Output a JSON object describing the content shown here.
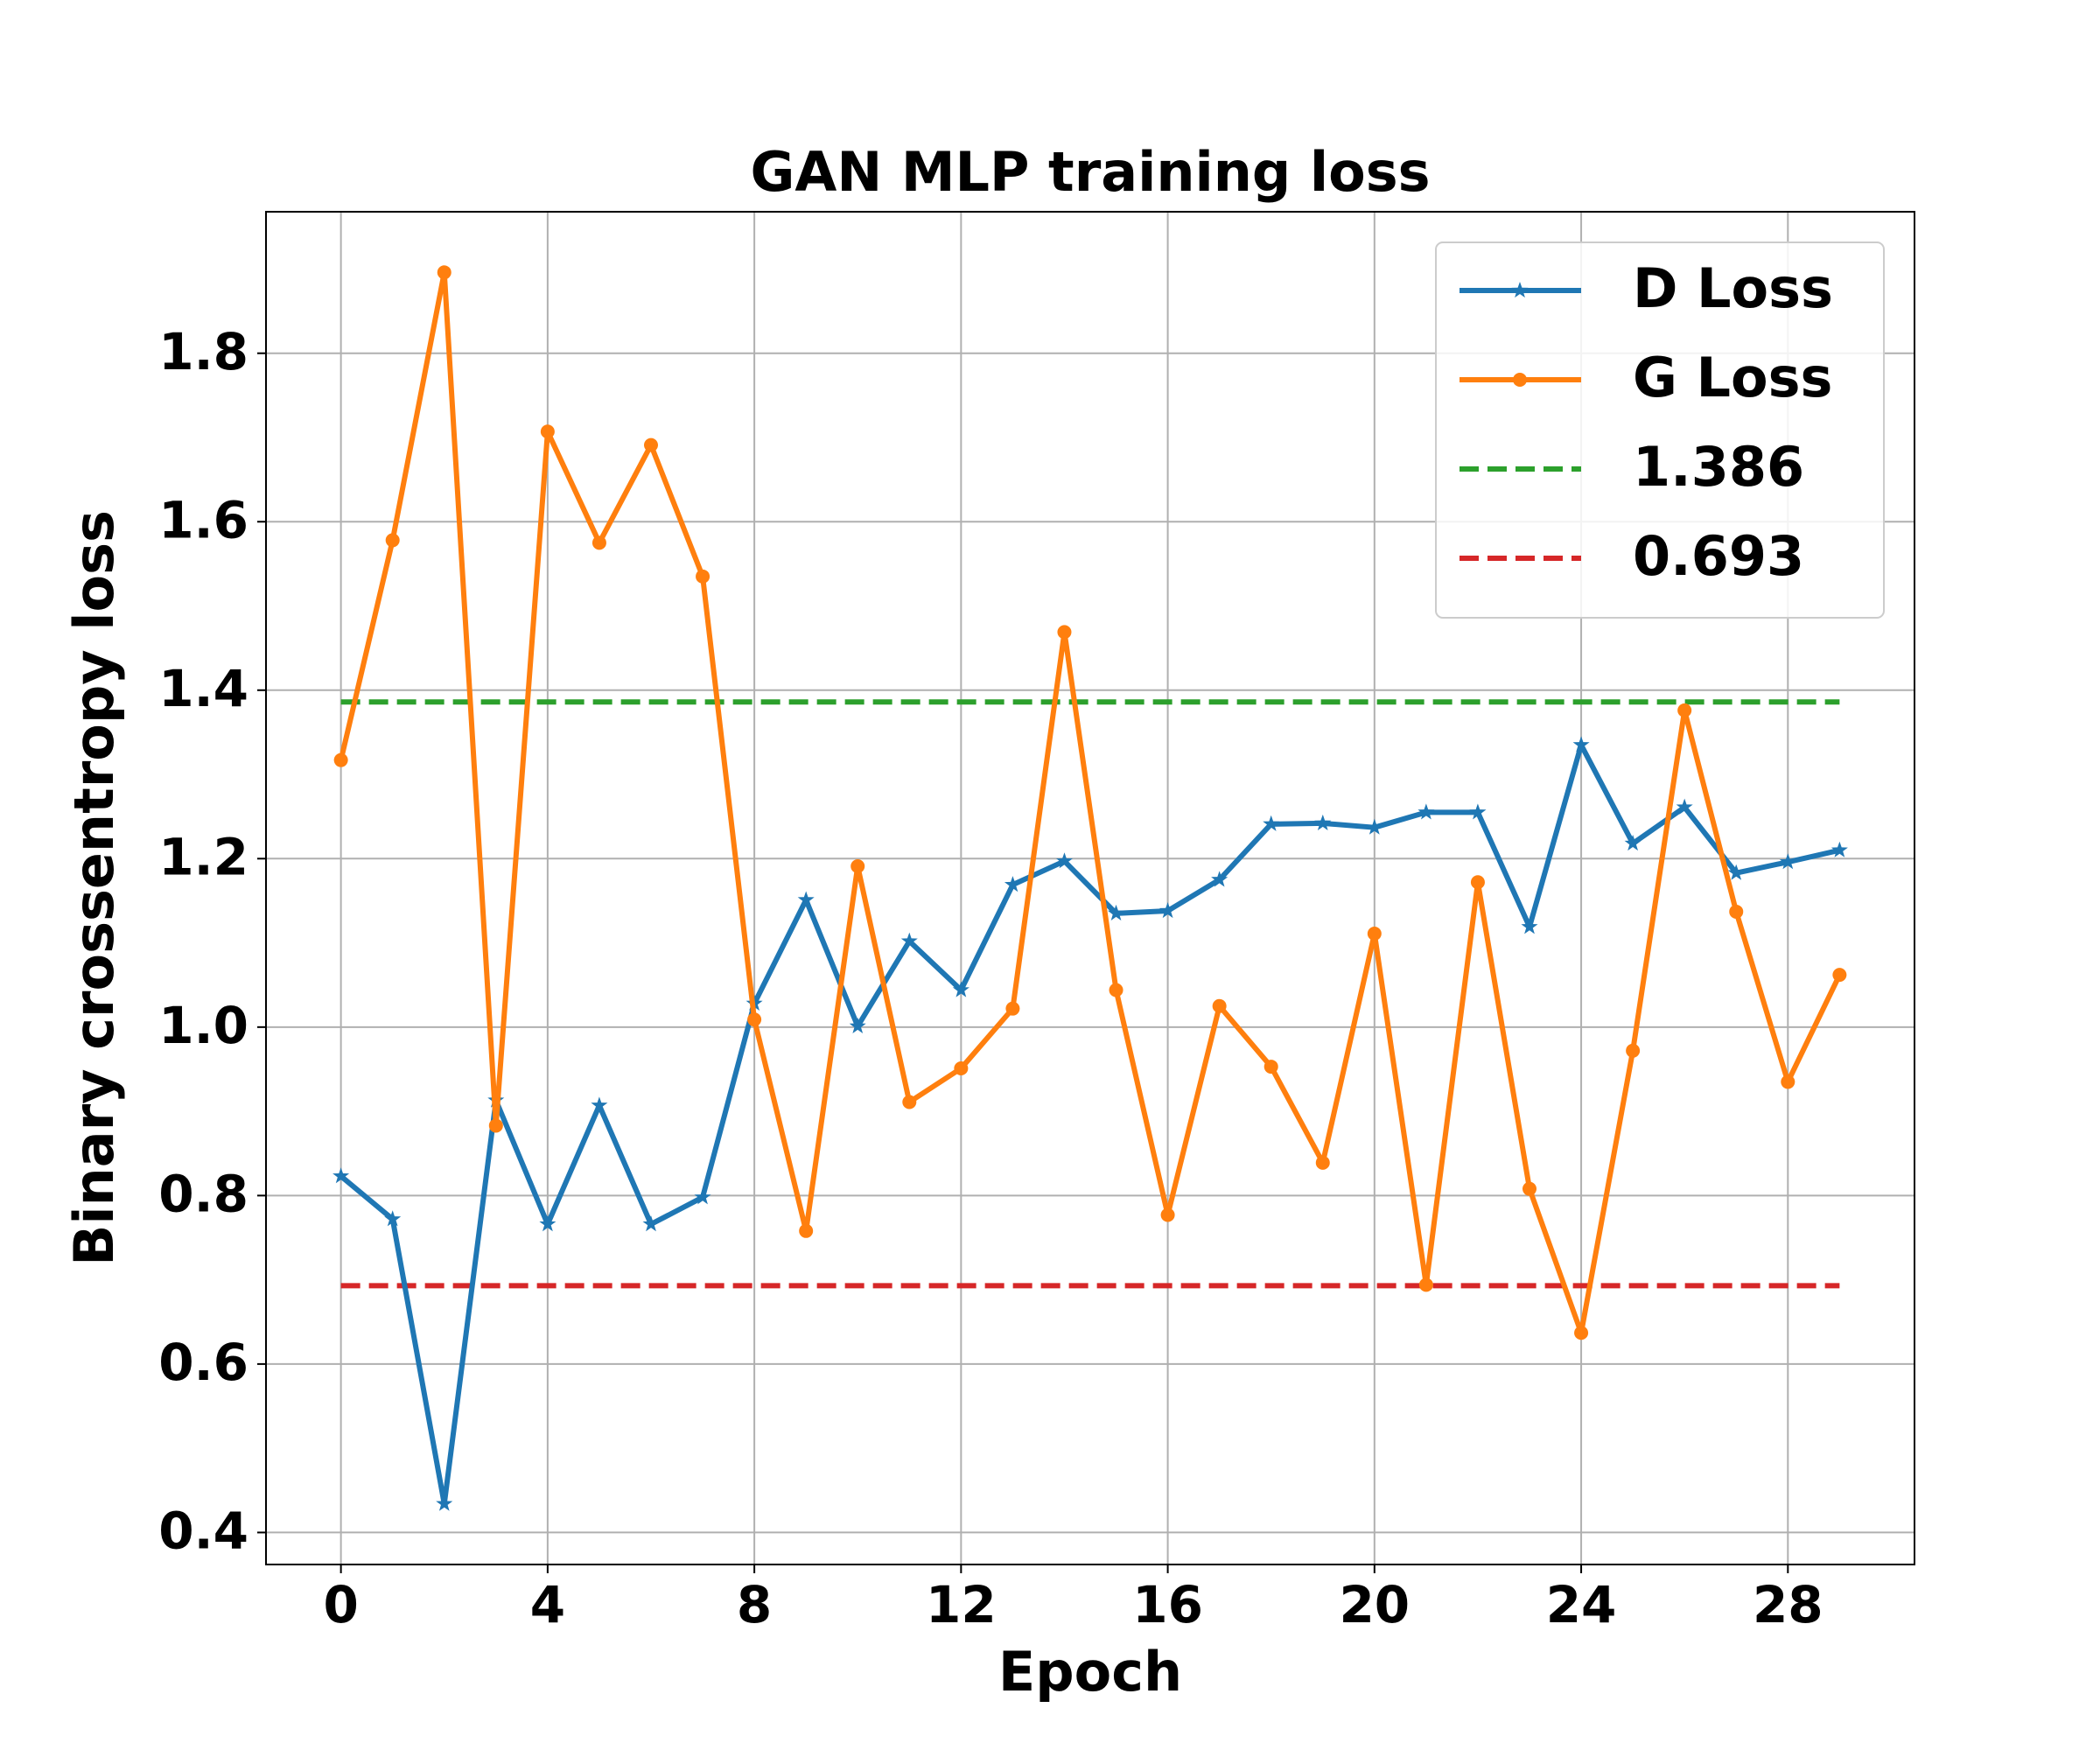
{
  "chart_data": {
    "type": "line",
    "title": "GAN MLP training loss",
    "xlabel": "Epoch",
    "ylabel": "Binary crossentropy loss",
    "x": [
      0,
      1,
      2,
      3,
      4,
      5,
      6,
      7,
      8,
      9,
      10,
      11,
      12,
      13,
      14,
      15,
      16,
      17,
      18,
      19,
      20,
      21,
      22,
      23,
      24,
      25,
      26,
      27,
      28,
      29
    ],
    "series": [
      {
        "name": "D Loss",
        "color": "#1f77b4",
        "marker": "star",
        "values": [
          0.823,
          0.772,
          0.434,
          0.913,
          0.766,
          0.907,
          0.766,
          0.798,
          1.028,
          1.151,
          1.001,
          1.102,
          1.044,
          1.169,
          1.197,
          1.135,
          1.138,
          1.175,
          1.241,
          1.242,
          1.237,
          1.255,
          1.255,
          1.119,
          1.335,
          1.218,
          1.261,
          1.183,
          1.196,
          1.21
        ]
      },
      {
        "name": "G Loss",
        "color": "#ff7f0e",
        "marker": "circle",
        "values": [
          1.317,
          1.578,
          1.896,
          0.883,
          1.707,
          1.575,
          1.691,
          1.535,
          1.009,
          0.758,
          1.191,
          0.911,
          0.951,
          1.022,
          1.469,
          1.044,
          0.777,
          1.025,
          0.953,
          0.839,
          1.111,
          0.694,
          1.172,
          0.808,
          0.637,
          0.972,
          1.376,
          1.137,
          0.935,
          1.062
        ]
      }
    ],
    "hlines": [
      {
        "name": "1.386",
        "value": 1.386,
        "color": "#2ca02c"
      },
      {
        "name": "0.693",
        "value": 0.693,
        "color": "#d62728"
      }
    ],
    "xlim": [
      -1.45,
      30.45
    ],
    "xticks": [
      0,
      4,
      8,
      12,
      16,
      20,
      24,
      28
    ],
    "ylim": [
      0.362,
      1.968
    ],
    "yticks": [
      0.4,
      0.6,
      0.8,
      {
        "value": 1,
        "label": "1.0"
      },
      1.2,
      1.4,
      1.6,
      1.8
    ],
    "grid": true,
    "legend": "upper right"
  }
}
